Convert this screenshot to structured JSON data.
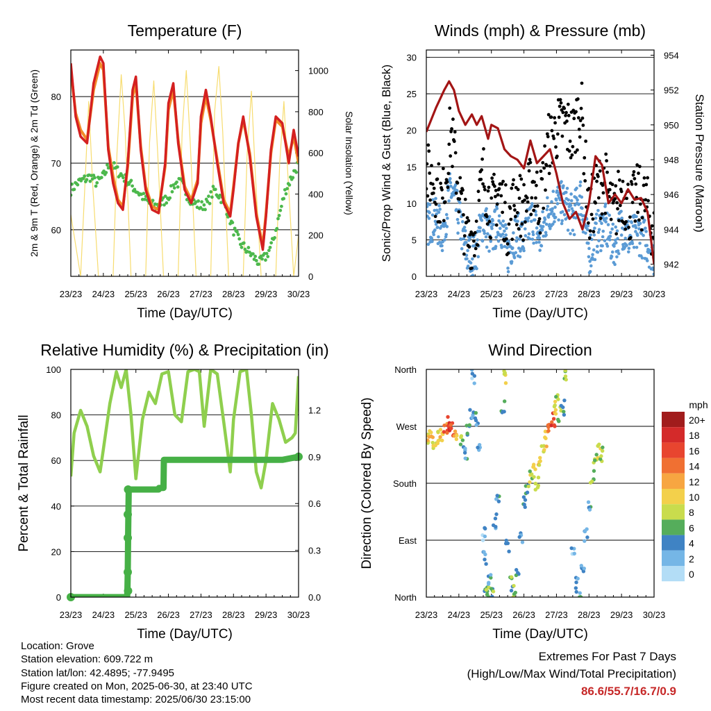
{
  "colors": {
    "temp9m": "#d42020",
    "temp2m": "#f28c28",
    "dewpoint": "#4cb84c",
    "solar": "#f7dc6f",
    "gust": "#000000",
    "wind": "#5b9bd5",
    "pressure": "#a31515",
    "rh": "#8fcf4e",
    "precip": "#46b046",
    "extremes": "#c62828"
  },
  "chart_data": [
    {
      "id": "temperature",
      "type": "line",
      "title": "Temperature (F)",
      "xlabel": "Time (Day/UTC)",
      "ylabel": "2m & 9m T (Red, Orange) & 2m Td (Green)",
      "y2label": "Solar Insolation (Yellow)",
      "x_ticks": [
        "23/23",
        "24/23",
        "25/23",
        "26/23",
        "27/23",
        "28/23",
        "29/23",
        "30/23"
      ],
      "xlim": [
        0,
        7
      ],
      "ylim": [
        53,
        87
      ],
      "y_ticks": [
        60,
        70,
        80
      ],
      "y2lim": [
        0,
        1100
      ],
      "y2_ticks": [
        0,
        200,
        400,
        600,
        800,
        1000
      ],
      "grid": "horizontal",
      "series": [
        {
          "key": "temp9m",
          "x": [
            0,
            0.15,
            0.3,
            0.5,
            0.7,
            0.9,
            1.0,
            1.15,
            1.3,
            1.45,
            1.6,
            1.75,
            1.9,
            2.0,
            2.15,
            2.3,
            2.5,
            2.7,
            2.9,
            3.0,
            3.15,
            3.3,
            3.5,
            3.7,
            3.9,
            4.0,
            4.15,
            4.3,
            4.5,
            4.7,
            4.9,
            5.0,
            5.15,
            5.3,
            5.5,
            5.7,
            5.9,
            6.0,
            6.15,
            6.3,
            6.5,
            6.7,
            6.85,
            7.0
          ],
          "values": [
            85,
            77,
            74,
            73,
            82,
            86,
            85,
            72,
            67,
            64,
            63,
            70,
            81,
            83,
            72,
            66,
            63,
            62.5,
            70,
            79,
            82,
            73,
            66,
            64,
            67,
            77,
            81,
            77,
            70,
            64,
            62,
            66,
            73,
            77,
            71,
            62,
            57,
            62,
            72,
            77,
            76,
            70,
            75,
            71
          ]
        },
        {
          "key": "temp2m",
          "x": [
            0,
            0.15,
            0.3,
            0.5,
            0.7,
            0.9,
            1.0,
            1.15,
            1.3,
            1.45,
            1.6,
            1.75,
            1.9,
            2.0,
            2.15,
            2.3,
            2.5,
            2.7,
            2.9,
            3.0,
            3.15,
            3.3,
            3.5,
            3.7,
            3.9,
            4.0,
            4.15,
            4.3,
            4.5,
            4.7,
            4.9,
            5.0,
            5.15,
            5.3,
            5.5,
            5.7,
            5.9,
            6.0,
            6.15,
            6.3,
            6.5,
            6.7,
            6.85,
            7.0
          ],
          "values": [
            84,
            77.5,
            75,
            73.5,
            81,
            85,
            84,
            72.5,
            68,
            64.5,
            63.5,
            69.5,
            80,
            82,
            72.5,
            66.5,
            63.5,
            63,
            69.5,
            78,
            81,
            73.5,
            66.5,
            64.5,
            67.5,
            76,
            80,
            76.5,
            70.5,
            64.5,
            62.5,
            66.5,
            73,
            76.5,
            71.5,
            62.5,
            57.5,
            62.5,
            71.5,
            76.5,
            75.5,
            71,
            74,
            70
          ]
        },
        {
          "key": "dewpoint",
          "x": [
            0,
            0.2,
            0.4,
            0.6,
            0.8,
            1.0,
            1.2,
            1.4,
            1.6,
            1.8,
            2.0,
            2.2,
            2.4,
            2.6,
            2.8,
            3.0,
            3.2,
            3.4,
            3.6,
            3.8,
            4.0,
            4.2,
            4.4,
            4.6,
            4.8,
            5.0,
            5.2,
            5.4,
            5.6,
            5.8,
            6.0,
            6.2,
            6.4,
            6.6,
            6.8,
            7.0
          ],
          "values": [
            66,
            67,
            67.5,
            68,
            67,
            68,
            70,
            69,
            68,
            67,
            66,
            65,
            64,
            63.5,
            64,
            65,
            67,
            67,
            65,
            64,
            63.5,
            64,
            66,
            65,
            63,
            60,
            58,
            57,
            56,
            55,
            56,
            58,
            62,
            66,
            68,
            70
          ]
        },
        {
          "key": "solar",
          "axis": "y2",
          "x": [
            0,
            0.3,
            0.42,
            0.55,
            0.67,
            0.85,
            1.0,
            1.3,
            1.42,
            1.55,
            1.67,
            1.85,
            2.0,
            2.3,
            2.42,
            2.55,
            2.67,
            2.85,
            3.0,
            3.3,
            3.42,
            3.55,
            3.67,
            3.85,
            4.0,
            4.3,
            4.42,
            4.55,
            4.67,
            4.85,
            5.0,
            5.3,
            5.42,
            5.55,
            5.67,
            5.85,
            6.0,
            6.3,
            6.42,
            6.55,
            6.67,
            6.85,
            7.0
          ],
          "values": [
            300,
            0,
            400,
            850,
            450,
            0,
            0,
            0,
            600,
            980,
            700,
            0,
            0,
            0,
            650,
            950,
            600,
            0,
            0,
            0,
            700,
            1000,
            650,
            0,
            0,
            0,
            800,
            1020,
            700,
            0,
            0,
            0,
            600,
            900,
            500,
            0,
            0,
            0,
            550,
            850,
            500,
            0,
            200
          ]
        }
      ]
    },
    {
      "id": "winds",
      "type": "scatter",
      "title": "Winds (mph) & Pressure (mb)",
      "xlabel": "Time (Day/UTC)",
      "ylabel": "Sonic/Prop Wind & Gust (Blue, Black)",
      "y2label": "Station Pressure (Maroon)",
      "x_ticks": [
        "23/23",
        "24/23",
        "25/23",
        "26/23",
        "27/23",
        "28/23",
        "29/23",
        "30/23"
      ],
      "xlim": [
        0,
        7
      ],
      "ylim": [
        0,
        31
      ],
      "y_ticks": [
        0,
        5,
        10,
        15,
        20,
        25,
        30
      ],
      "y2lim": [
        941.3,
        954.3
      ],
      "y2_ticks": [
        942,
        944,
        946,
        948,
        950,
        952,
        954
      ],
      "grid": "horizontal",
      "series": [
        {
          "key": "gust",
          "x": [
            0,
            0.25,
            0.5,
            0.75,
            1.0,
            1.25,
            1.5,
            1.75,
            2.0,
            2.25,
            2.5,
            2.75,
            3.0,
            3.25,
            3.5,
            3.75,
            4.0,
            4.25,
            4.5,
            4.75,
            5.0,
            5.25,
            5.5,
            5.75,
            6.0,
            6.25,
            6.5,
            6.75,
            7.0
          ],
          "values": [
            14,
            13,
            10,
            20,
            12,
            5,
            6,
            14,
            9,
            12,
            7,
            11,
            9,
            13,
            10,
            18,
            20,
            21,
            19,
            24,
            8,
            12,
            13,
            8,
            12,
            9,
            11,
            10,
            6
          ]
        },
        {
          "key": "wind",
          "x": [
            0,
            0.25,
            0.5,
            0.75,
            1.0,
            1.25,
            1.5,
            1.75,
            2.0,
            2.25,
            2.5,
            2.75,
            3.0,
            3.25,
            3.5,
            3.75,
            4.0,
            4.25,
            4.5,
            4.75,
            5.0,
            5.25,
            5.5,
            5.75,
            6.0,
            6.25,
            6.5,
            6.75,
            7.0
          ],
          "values": [
            7,
            8,
            6,
            12,
            8,
            3,
            3,
            8,
            5,
            8,
            3,
            6,
            5,
            8,
            5,
            9,
            10,
            10,
            8,
            11,
            3,
            6,
            7,
            4,
            7,
            5,
            6,
            5,
            3
          ]
        },
        {
          "key": "pressure",
          "axis": "y2",
          "x": [
            0,
            0.3,
            0.55,
            0.7,
            0.85,
            1.0,
            1.2,
            1.4,
            1.55,
            1.7,
            1.9,
            2.0,
            2.2,
            2.4,
            2.6,
            2.8,
            3.0,
            3.2,
            3.4,
            3.6,
            3.8,
            4.0,
            4.2,
            4.4,
            4.6,
            4.8,
            5.0,
            5.2,
            5.4,
            5.6,
            5.8,
            6.0,
            6.2,
            6.4,
            6.6,
            6.8,
            6.9,
            7.0
          ],
          "values": [
            949.6,
            951,
            952,
            952.5,
            952,
            950.8,
            950,
            950.6,
            950,
            950.5,
            949.2,
            950,
            949.8,
            948.6,
            948.2,
            948,
            947.5,
            949.1,
            947.8,
            948.2,
            948.6,
            947.2,
            945.5,
            944.6,
            945,
            944,
            945.5,
            948.2,
            947.7,
            945.5,
            946,
            945.5,
            946.3,
            945.7,
            945.8,
            945,
            943.5,
            942
          ]
        }
      ]
    },
    {
      "id": "humidity",
      "type": "line",
      "title": "Relative Humidity (%) & Precipitation (in)",
      "xlabel": "Time (Day/UTC)",
      "ylabel": "Percent & Total Rainfall",
      "x_ticks": [
        "23/23",
        "24/23",
        "25/23",
        "26/23",
        "27/23",
        "28/23",
        "29/23",
        "30/23"
      ],
      "xlim": [
        0,
        7
      ],
      "ylim": [
        0,
        100
      ],
      "y_ticks": [
        0,
        20,
        40,
        60,
        80,
        100
      ],
      "y2lim": [
        0,
        1.46
      ],
      "y2_ticks": [
        "0.0",
        "0.3",
        "0.6",
        "0.9",
        "1.2"
      ],
      "grid": "horizontal",
      "series": [
        {
          "key": "rh",
          "x": [
            0,
            0.1,
            0.3,
            0.5,
            0.7,
            0.9,
            1.0,
            1.2,
            1.4,
            1.55,
            1.7,
            1.85,
            2.0,
            2.2,
            2.4,
            2.6,
            2.8,
            3.0,
            3.2,
            3.4,
            3.6,
            3.8,
            3.95,
            4.1,
            4.3,
            4.5,
            4.7,
            4.9,
            5.0,
            5.2,
            5.4,
            5.55,
            5.7,
            5.85,
            6.0,
            6.2,
            6.4,
            6.6,
            6.8,
            6.9,
            7.0
          ],
          "values": [
            53,
            72,
            82,
            75,
            62,
            55,
            65,
            85,
            99,
            92,
            100,
            80,
            52,
            78,
            90,
            85,
            98,
            99,
            80,
            77,
            99,
            100,
            99,
            75,
            100,
            98,
            77,
            55,
            78,
            99,
            100,
            80,
            55,
            48,
            60,
            85,
            78,
            68,
            70,
            72,
            97
          ]
        },
        {
          "key": "precip",
          "axis": "y2",
          "x": [
            0,
            1.73,
            1.74,
            1.75,
            1.76,
            1.77,
            1.78,
            2.0,
            2.5,
            2.7,
            2.71,
            2.85,
            2.86,
            3.0,
            3.5,
            4.0,
            4.5,
            5.0,
            5.5,
            6.0,
            6.5,
            7.0
          ],
          "values": [
            0,
            0,
            0.04,
            0.16,
            0.38,
            0.53,
            0.69,
            0.69,
            0.69,
            0.69,
            0.7,
            0.7,
            0.88,
            0.88,
            0.88,
            0.88,
            0.88,
            0.88,
            0.88,
            0.88,
            0.88,
            0.9
          ]
        }
      ]
    },
    {
      "id": "wind_direction",
      "type": "scatter",
      "title": "Wind Direction",
      "xlabel": "Time (Day/UTC)",
      "ylabel": "Direction (Colored By Speed)",
      "x_ticks": [
        "23/23",
        "24/23",
        "25/23",
        "26/23",
        "27/23",
        "28/23",
        "29/23",
        "30/23"
      ],
      "xlim": [
        0,
        7
      ],
      "ylim": [
        0,
        360
      ],
      "y_ticks": [
        "North",
        "East",
        "South",
        "West",
        "North"
      ],
      "grid": "horizontal",
      "legend": {
        "title": "mph",
        "labels": [
          "20+",
          "18",
          "16",
          "14",
          "12",
          "10",
          "8",
          "6",
          "4",
          "2",
          "0"
        ],
        "colors": [
          "#a11c1c",
          "#d42a2a",
          "#e8452f",
          "#f07032",
          "#f7a641",
          "#f3d04b",
          "#c9dc4d",
          "#55ad5b",
          "#3f83c4",
          "#75b6e6",
          "#b3ddf6"
        ]
      },
      "points": [
        [
          0.05,
          248,
          10
        ],
        [
          0.15,
          255,
          11
        ],
        [
          0.25,
          245,
          8
        ],
        [
          0.35,
          250,
          9
        ],
        [
          0.45,
          255,
          10
        ],
        [
          0.6,
          270,
          14
        ],
        [
          0.7,
          275,
          17
        ],
        [
          0.8,
          265,
          15
        ],
        [
          0.9,
          255,
          11
        ],
        [
          1.1,
          245,
          6
        ],
        [
          1.2,
          230,
          4
        ],
        [
          1.3,
          260,
          5
        ],
        [
          1.4,
          290,
          3
        ],
        [
          1.45,
          350,
          2
        ],
        [
          1.55,
          280,
          4
        ],
        [
          1.6,
          230,
          3
        ],
        [
          1.75,
          100,
          2
        ],
        [
          1.8,
          60,
          3
        ],
        [
          1.85,
          20,
          5
        ],
        [
          1.9,
          10,
          7
        ],
        [
          1.95,
          30,
          4
        ],
        [
          2.05,
          5,
          6
        ],
        [
          2.1,
          120,
          3
        ],
        [
          2.2,
          160,
          4
        ],
        [
          2.35,
          300,
          5
        ],
        [
          2.45,
          350,
          8
        ],
        [
          2.5,
          80,
          3
        ],
        [
          2.6,
          20,
          6
        ],
        [
          2.7,
          10,
          7
        ],
        [
          2.8,
          40,
          4
        ],
        [
          2.9,
          90,
          3
        ],
        [
          3.0,
          150,
          4
        ],
        [
          3.1,
          170,
          6
        ],
        [
          3.2,
          190,
          8
        ],
        [
          3.3,
          200,
          9
        ],
        [
          3.4,
          180,
          7
        ],
        [
          3.5,
          210,
          10
        ],
        [
          3.6,
          230,
          9
        ],
        [
          3.7,
          250,
          10
        ],
        [
          3.8,
          265,
          13
        ],
        [
          3.9,
          280,
          16
        ],
        [
          3.95,
          300,
          10
        ],
        [
          4.0,
          310,
          8
        ],
        [
          4.1,
          290,
          6
        ],
        [
          4.2,
          300,
          5
        ],
        [
          4.3,
          350,
          7
        ],
        [
          4.5,
          70,
          2
        ],
        [
          4.6,
          20,
          3
        ],
        [
          4.7,
          0,
          4
        ],
        [
          4.8,
          40,
          3
        ],
        [
          4.9,
          100,
          3
        ],
        [
          5.0,
          150,
          4
        ],
        [
          5.1,
          190,
          6
        ],
        [
          5.2,
          220,
          7
        ],
        [
          5.3,
          230,
          8
        ],
        [
          5.4,
          225,
          6
        ]
      ]
    }
  ],
  "info": {
    "location": "Location: Grove",
    "elevation": "Station elevation: 609.722 m",
    "latlon": "Station lat/lon: 42.4895; -77.9495",
    "created": "Figure created on Mon, 2025-06-30, at 23:40 UTC",
    "recent": "Most recent data timestamp: 2025/06/30 23:15:00"
  },
  "extremes": {
    "title": "Extremes For Past 7 Days",
    "subtitle": "(High/Low/Max Wind/Total Precipitation)",
    "values": "86.6/55.7/16.7/0.9"
  }
}
